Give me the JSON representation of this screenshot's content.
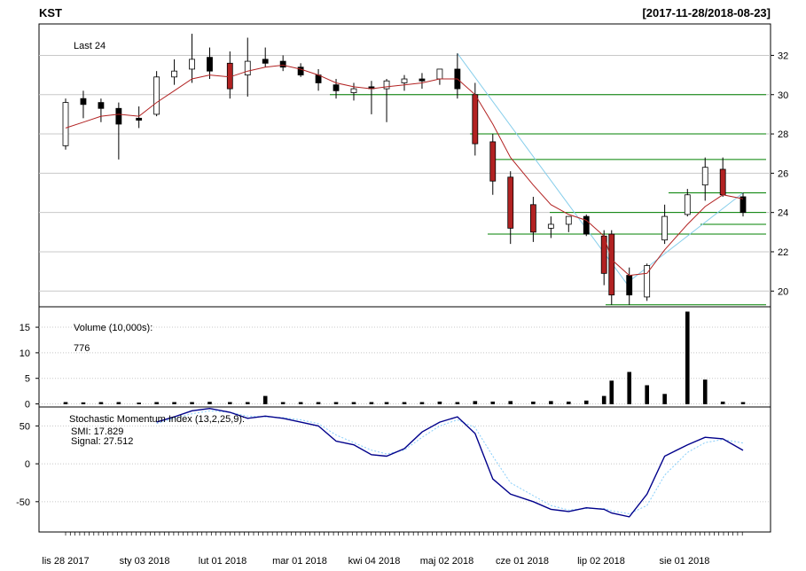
{
  "header": {
    "symbol": "KST",
    "date_range": "[2017-11-28/2018-08-23]"
  },
  "price_panel": {
    "label": "Last 24",
    "y_ticks": [
      20,
      22,
      24,
      26,
      28,
      30,
      32
    ],
    "ylim": [
      19.2,
      33.6
    ],
    "candle_up_color": "#ffffff",
    "candle_down_color": "#000000",
    "candle_highlight_color": "#b22222",
    "ma_color": "#b22222",
    "trend_color": "#87ceeb",
    "sr_color": "#008000"
  },
  "volume_panel": {
    "label": "Volume (10,000s):",
    "value": "776",
    "y_ticks": [
      0,
      5,
      10,
      15
    ],
    "ylim": [
      -0.6,
      19.0
    ]
  },
  "smi_panel": {
    "label": "Stochastic Momentum Index (13,2,25,9):",
    "smi_label": "SMI: 17.829",
    "signal_label": "Signal: 27.512",
    "y_ticks": [
      -50,
      0,
      50
    ],
    "ylim": [
      -90,
      75
    ],
    "smi_color": "#00008b",
    "signal_color": "#87cefa"
  },
  "x_axis": {
    "labels": [
      "lis 28 2017",
      "sty 03 2018",
      "lut 01 2018",
      "mar 01 2018",
      "kwi 04 2018",
      "maj 02 2018",
      "cze 01 2018",
      "lip 02 2018",
      "sie 01 2018"
    ]
  },
  "chart_data": [
    {
      "type": "candlestick",
      "title": "KST",
      "subtitle": "[2017-11-28/2018-08-23]",
      "x": [
        "2017-11-28",
        "2017-12-05",
        "2017-12-12",
        "2017-12-19",
        "2017-12-27",
        "2018-01-03",
        "2018-01-10",
        "2018-01-17",
        "2018-01-24",
        "2018-02-01",
        "2018-02-08",
        "2018-02-15",
        "2018-02-22",
        "2018-03-01",
        "2018-03-08",
        "2018-03-15",
        "2018-03-22",
        "2018-03-29",
        "2018-04-04",
        "2018-04-11",
        "2018-04-18",
        "2018-04-25",
        "2018-05-02",
        "2018-05-09",
        "2018-05-16",
        "2018-05-23",
        "2018-06-01",
        "2018-06-08",
        "2018-06-15",
        "2018-06-22",
        "2018-06-29",
        "2018-07-02",
        "2018-07-09",
        "2018-07-16",
        "2018-07-23",
        "2018-08-01",
        "2018-08-08",
        "2018-08-15",
        "2018-08-23"
      ],
      "open": [
        27.4,
        29.8,
        29.6,
        29.3,
        28.8,
        29.0,
        30.9,
        31.3,
        31.9,
        31.6,
        31.0,
        31.8,
        31.7,
        31.4,
        31.0,
        30.5,
        30.1,
        30.4,
        30.3,
        30.6,
        30.8,
        30.8,
        31.3,
        30.0,
        27.6,
        25.8,
        24.4,
        23.2,
        23.4,
        23.8,
        22.8,
        22.9,
        20.8,
        19.7,
        22.6,
        23.9,
        25.4,
        26.2,
        24.8
      ],
      "high": [
        29.8,
        30.2,
        29.8,
        29.6,
        29.4,
        31.2,
        31.8,
        33.1,
        32.4,
        32.2,
        32.9,
        32.4,
        32.0,
        31.6,
        31.3,
        30.8,
        30.6,
        30.7,
        30.8,
        31.0,
        31.1,
        31.2,
        32.1,
        30.6,
        28.0,
        26.1,
        24.8,
        23.8,
        23.8,
        23.9,
        23.1,
        23.1,
        21.2,
        21.4,
        24.4,
        25.2,
        26.8,
        26.8,
        25.0
      ],
      "low": [
        27.2,
        28.8,
        28.6,
        26.7,
        28.3,
        28.9,
        30.5,
        30.6,
        30.8,
        29.8,
        29.9,
        31.4,
        31.2,
        30.9,
        30.2,
        29.8,
        29.7,
        29.0,
        28.6,
        30.2,
        30.3,
        30.5,
        29.8,
        26.9,
        24.9,
        22.4,
        22.5,
        22.7,
        23.0,
        22.8,
        20.3,
        19.3,
        19.3,
        19.5,
        22.4,
        23.8,
        24.6,
        24.8,
        23.8
      ],
      "close": [
        29.6,
        29.5,
        29.3,
        28.5,
        28.7,
        30.9,
        31.2,
        31.8,
        31.2,
        30.3,
        31.7,
        31.6,
        31.4,
        31.0,
        30.6,
        30.2,
        30.3,
        30.3,
        30.7,
        30.8,
        30.7,
        31.3,
        30.3,
        27.5,
        25.6,
        23.2,
        23.0,
        23.4,
        23.8,
        22.9,
        20.9,
        19.8,
        19.8,
        21.3,
        23.8,
        24.9,
        26.3,
        24.9,
        24.0
      ],
      "volume": [
        0.3,
        0.25,
        0.3,
        0.3,
        0.2,
        0.3,
        0.3,
        0.3,
        0.35,
        0.3,
        0.3,
        1.5,
        0.3,
        0.3,
        0.3,
        0.3,
        0.3,
        0.3,
        0.3,
        0.3,
        0.3,
        0.4,
        0.3,
        0.5,
        0.4,
        0.5,
        0.4,
        0.5,
        0.4,
        0.6,
        1.5,
        4.5,
        6.2,
        3.6,
        1.9,
        18.0,
        4.7,
        0.4,
        0.3
      ],
      "ma": [
        28.3,
        28.6,
        28.9,
        29.0,
        28.9,
        29.6,
        30.2,
        30.8,
        31.0,
        30.9,
        31.2,
        31.4,
        31.5,
        31.3,
        31.0,
        30.6,
        30.4,
        30.3,
        30.4,
        30.5,
        30.6,
        30.8,
        30.8,
        30.0,
        28.5,
        26.8,
        25.4,
        24.4,
        23.9,
        23.6,
        22.8,
        21.6,
        20.8,
        20.9,
        22.1,
        23.4,
        24.3,
        24.9,
        24.7
      ],
      "sr_levels": [
        30.0,
        28.0,
        26.7,
        25.0,
        24.0,
        23.4,
        22.9,
        19.3
      ],
      "trendline": {
        "from": [
          "2018-05-02",
          32.1
        ],
        "to": [
          "2018-07-09",
          20.2
        ]
      },
      "uptrend": {
        "from": [
          "2018-07-09",
          20.5
        ],
        "to": [
          "2018-08-23",
          25.0
        ]
      },
      "ylim": [
        19.2,
        33.6
      ]
    },
    {
      "type": "line",
      "title": "Stochastic Momentum Index (13,2,25,9):",
      "x": [
        "2018-01-03",
        "2018-01-10",
        "2018-01-17",
        "2018-01-24",
        "2018-02-01",
        "2018-02-08",
        "2018-02-15",
        "2018-02-22",
        "2018-03-01",
        "2018-03-08",
        "2018-03-15",
        "2018-03-22",
        "2018-03-29",
        "2018-04-04",
        "2018-04-11",
        "2018-04-18",
        "2018-04-25",
        "2018-05-02",
        "2018-05-09",
        "2018-05-16",
        "2018-05-23",
        "2018-06-01",
        "2018-06-08",
        "2018-06-15",
        "2018-06-22",
        "2018-06-29",
        "2018-07-02",
        "2018-07-09",
        "2018-07-16",
        "2018-07-23",
        "2018-08-01",
        "2018-08-08",
        "2018-08-15",
        "2018-08-23"
      ],
      "series": [
        {
          "name": "SMI: 17.829",
          "values": [
            55,
            62,
            70,
            73,
            68,
            60,
            63,
            60,
            55,
            50,
            30,
            25,
            12,
            10,
            20,
            42,
            55,
            62,
            40,
            -20,
            -40,
            -50,
            -60,
            -63,
            -58,
            -60,
            -65,
            -70,
            -40,
            10,
            25,
            35,
            33,
            17.8
          ]
        },
        {
          "name": "Signal: 27.512",
          "values": [
            53,
            60,
            66,
            70,
            68,
            63,
            62,
            61,
            58,
            53,
            38,
            28,
            18,
            13,
            18,
            35,
            50,
            58,
            48,
            10,
            -25,
            -42,
            -55,
            -61,
            -59,
            -59,
            -62,
            -66,
            -55,
            -15,
            15,
            28,
            32,
            27.5
          ]
        }
      ],
      "ylim": [
        -90,
        75
      ]
    }
  ]
}
